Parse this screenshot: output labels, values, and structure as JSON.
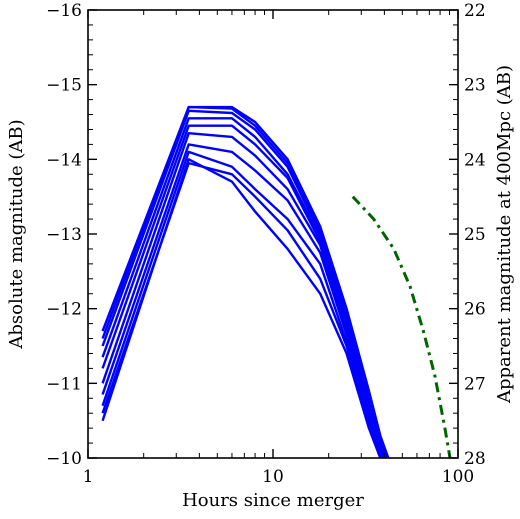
{
  "chart_data": {
    "type": "line",
    "xlabel": "Hours since merger",
    "ylabel": "Absolute magnitude (AB)",
    "ylabel_right": "Apparent magnitude at 400Mpc (AB)",
    "x_scale": "log",
    "xlim": [
      1,
      100
    ],
    "ylim": [
      -16,
      -10
    ],
    "y_inverted": true,
    "ylim_right": [
      22,
      28
    ],
    "x_ticks": [
      {
        "value": 1,
        "label": "1"
      },
      {
        "value": 10,
        "label": "10"
      },
      {
        "value": 100,
        "label": "100"
      }
    ],
    "y_ticks": [
      {
        "value": -16,
        "label": "−16"
      },
      {
        "value": -15,
        "label": "−15"
      },
      {
        "value": -14,
        "label": "−14"
      },
      {
        "value": -13,
        "label": "−13"
      },
      {
        "value": -12,
        "label": "−12"
      },
      {
        "value": -11,
        "label": "−11"
      },
      {
        "value": -10,
        "label": "−10"
      }
    ],
    "y_right_ticks": [
      {
        "value": 22,
        "label": "22"
      },
      {
        "value": 23,
        "label": "23"
      },
      {
        "value": 24,
        "label": "24"
      },
      {
        "value": 25,
        "label": "25"
      },
      {
        "value": 26,
        "label": "26"
      },
      {
        "value": 27,
        "label": "27"
      },
      {
        "value": 28,
        "label": "28"
      }
    ],
    "series_color": "#0000ff",
    "reference_color": "#006400",
    "series": [
      {
        "x": [
          1.2,
          3.5,
          6.0,
          8.0,
          12.0,
          18.0,
          25.0,
          33.0,
          38.0,
          42.0
        ],
        "y": [
          -11.7,
          -14.7,
          -14.7,
          -14.5,
          -14.0,
          -13.1,
          -12.0,
          -10.9,
          -10.3,
          -10.0
        ]
      },
      {
        "x": [
          1.2,
          3.5,
          6.0,
          8.0,
          12.0,
          18.0,
          25.0,
          33.0,
          38.0,
          42.0
        ],
        "y": [
          -11.6,
          -14.7,
          -14.68,
          -14.45,
          -13.95,
          -13.05,
          -11.9,
          -10.85,
          -10.25,
          -10.0
        ]
      },
      {
        "x": [
          1.2,
          3.5,
          6.0,
          8.0,
          12.0,
          18.0,
          25.0,
          33.0,
          38.0,
          42.0
        ],
        "y": [
          -11.5,
          -14.65,
          -14.62,
          -14.4,
          -13.9,
          -13.0,
          -11.85,
          -10.8,
          -10.2,
          -10.0
        ]
      },
      {
        "x": [
          1.2,
          3.5,
          6.0,
          8.0,
          12.0,
          18.0,
          25.0,
          33.0,
          38.0,
          41.0
        ],
        "y": [
          -11.35,
          -14.55,
          -14.55,
          -14.3,
          -13.8,
          -12.95,
          -11.8,
          -10.75,
          -10.15,
          -10.0
        ]
      },
      {
        "x": [
          1.2,
          3.5,
          6.0,
          8.0,
          12.0,
          18.0,
          25.0,
          33.0,
          38.0,
          41.0
        ],
        "y": [
          -11.2,
          -14.45,
          -14.45,
          -14.2,
          -13.75,
          -12.9,
          -11.75,
          -10.7,
          -10.1,
          -10.0
        ]
      },
      {
        "x": [
          1.2,
          3.5,
          6.0,
          8.0,
          12.0,
          18.0,
          25.0,
          33.0,
          38.0,
          40.0
        ],
        "y": [
          -11.0,
          -14.35,
          -14.3,
          -14.05,
          -13.6,
          -12.85,
          -11.7,
          -10.6,
          -10.1,
          -10.0
        ]
      },
      {
        "x": [
          1.2,
          3.5,
          6.0,
          8.0,
          12.0,
          18.0,
          25.0,
          33.0,
          38.0,
          40.0
        ],
        "y": [
          -10.85,
          -14.2,
          -14.1,
          -13.85,
          -13.45,
          -12.75,
          -11.65,
          -10.55,
          -10.05,
          -10.0
        ]
      },
      {
        "x": [
          1.2,
          3.5,
          6.0,
          8.0,
          12.0,
          18.0,
          25.0,
          33.0,
          38.0,
          40.0
        ],
        "y": [
          -10.7,
          -14.1,
          -13.9,
          -13.6,
          -13.2,
          -12.6,
          -11.55,
          -10.5,
          -10.05,
          -10.0
        ]
      },
      {
        "x": [
          1.2,
          3.5,
          6.0,
          8.0,
          12.0,
          18.0,
          25.0,
          33.0,
          38.0,
          40.0
        ],
        "y": [
          -10.6,
          -13.95,
          -13.8,
          -13.5,
          -13.05,
          -12.4,
          -11.5,
          -10.45,
          -10.0,
          -10.0
        ]
      },
      {
        "x": [
          1.2,
          3.5,
          6.0,
          8.0,
          12.0,
          18.0,
          25.0,
          33.0,
          38.0
        ],
        "y": [
          -10.5,
          -14.0,
          -13.7,
          -13.3,
          -12.8,
          -12.2,
          -11.4,
          -10.4,
          -10.0
        ]
      }
    ],
    "reference_curve": {
      "style": "dash-dot",
      "x": [
        27,
        35,
        45,
        55,
        65,
        75,
        85,
        92
      ],
      "y": [
        -13.5,
        -13.2,
        -12.8,
        -12.3,
        -11.7,
        -11.1,
        -10.4,
        -9.9
      ]
    }
  }
}
